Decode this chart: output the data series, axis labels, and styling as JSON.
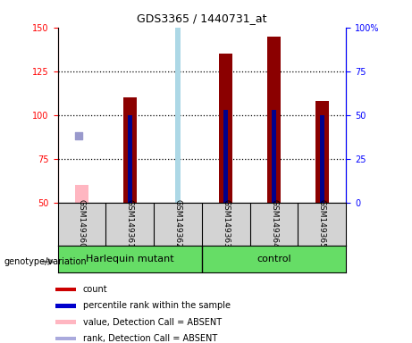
{
  "title": "GDS3365 / 1440731_at",
  "samples": [
    "GSM149360",
    "GSM149361",
    "GSM149362",
    "GSM149363",
    "GSM149364",
    "GSM149365"
  ],
  "group_labels": [
    "Harlequin mutant",
    "control"
  ],
  "count_values": [
    null,
    110,
    null,
    135,
    145,
    108
  ],
  "count_absent": [
    60,
    null,
    null,
    null,
    null,
    null
  ],
  "rank_values": [
    null,
    50,
    null,
    53,
    53,
    50
  ],
  "rank_absent": [
    null,
    null,
    105,
    null,
    null,
    null
  ],
  "rank_point_absent": [
    88,
    null,
    null,
    null,
    null,
    null
  ],
  "ylim_left": [
    50,
    150
  ],
  "ylim_right": [
    0,
    100
  ],
  "yticks_left": [
    50,
    75,
    100,
    125,
    150
  ],
  "yticks_right": [
    0,
    25,
    50,
    75,
    100
  ],
  "ytick_labels_left": [
    "50",
    "75",
    "100",
    "125",
    "150"
  ],
  "ytick_labels_right": [
    "0",
    "25",
    "50",
    "75",
    "100%"
  ],
  "count_color": "#8b0000",
  "count_absent_color": "#ffb6c1",
  "rank_color": "#00008b",
  "rank_absent_color": "#add8e6",
  "rank_point_absent_color": "#9999cc",
  "legend_items": [
    {
      "label": "count",
      "color": "#cc0000"
    },
    {
      "label": "percentile rank within the sample",
      "color": "#0000cc"
    },
    {
      "label": "value, Detection Call = ABSENT",
      "color": "#ffb6c1"
    },
    {
      "label": "rank, Detection Call = ABSENT",
      "color": "#aaaadd"
    }
  ]
}
